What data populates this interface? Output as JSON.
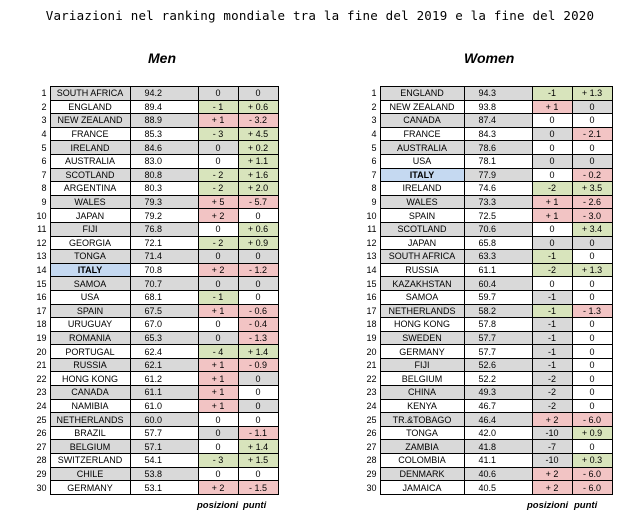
{
  "title": "Variazioni nel ranking mondiale tra la fine del 2019 e la fine del 2020",
  "men": {
    "heading": "Men",
    "rows": [
      {
        "pos": "1",
        "name": "SOUTH AFRICA",
        "score": "94.2",
        "dpos": "0",
        "dpts": "0",
        "dpos_color": "grey",
        "dpts_color": "grey"
      },
      {
        "pos": "2",
        "name": "ENGLAND",
        "score": "89.4",
        "dpos": "- 1",
        "dpts": "+ 0.6",
        "dpos_color": "green",
        "dpts_color": "green"
      },
      {
        "pos": "3",
        "name": "NEW ZEALAND",
        "score": "88.9",
        "dpos": "+ 1",
        "dpts": "- 3.2",
        "dpos_color": "red",
        "dpts_color": "red"
      },
      {
        "pos": "4",
        "name": "FRANCE",
        "score": "85.3",
        "dpos": "- 3",
        "dpts": "+ 4.5",
        "dpos_color": "green",
        "dpts_color": "green"
      },
      {
        "pos": "5",
        "name": "IRELAND",
        "score": "84.6",
        "dpos": "0",
        "dpts": "+ 0.2",
        "dpos_color": "grey",
        "dpts_color": "green"
      },
      {
        "pos": "6",
        "name": "AUSTRALIA",
        "score": "83.0",
        "dpos": "0",
        "dpts": "+ 1.1",
        "dpos_color": "white",
        "dpts_color": "green"
      },
      {
        "pos": "7",
        "name": "SCOTLAND",
        "score": "80.8",
        "dpos": "- 2",
        "dpts": "+ 1.6",
        "dpos_color": "green",
        "dpts_color": "green"
      },
      {
        "pos": "8",
        "name": "ARGENTINA",
        "score": "80.3",
        "dpos": "- 2",
        "dpts": "+ 2.0",
        "dpos_color": "green",
        "dpts_color": "green"
      },
      {
        "pos": "9",
        "name": "WALES",
        "score": "79.3",
        "dpos": "+ 5",
        "dpts": "- 5.7",
        "dpos_color": "red",
        "dpts_color": "red"
      },
      {
        "pos": "10",
        "name": "JAPAN",
        "score": "79.2",
        "dpos": "+ 2",
        "dpts": "0",
        "dpos_color": "red",
        "dpts_color": "white"
      },
      {
        "pos": "11",
        "name": "FIJI",
        "score": "76.8",
        "dpos": "0",
        "dpts": "+ 0.6",
        "dpos_color": "white",
        "dpts_color": "green"
      },
      {
        "pos": "12",
        "name": "GEORGIA",
        "score": "72.1",
        "dpos": "- 2",
        "dpts": "+ 0.9",
        "dpos_color": "green",
        "dpts_color": "green"
      },
      {
        "pos": "13",
        "name": "TONGA",
        "score": "71.4",
        "dpos": "0",
        "dpts": "0",
        "dpos_color": "grey",
        "dpts_color": "grey"
      },
      {
        "pos": "14",
        "name": "ITALY",
        "score": "70.8",
        "dpos": "+ 2",
        "dpts": "- 1.2",
        "dpos_color": "red",
        "dpts_color": "red",
        "highlight": true
      },
      {
        "pos": "15",
        "name": "SAMOA",
        "score": "70.7",
        "dpos": "0",
        "dpts": "0",
        "dpos_color": "grey",
        "dpts_color": "grey"
      },
      {
        "pos": "16",
        "name": "USA",
        "score": "68.1",
        "dpos": "- 1",
        "dpts": "0",
        "dpos_color": "green",
        "dpts_color": "white"
      },
      {
        "pos": "17",
        "name": "SPAIN",
        "score": "67.5",
        "dpos": "+ 1",
        "dpts": "- 0.6",
        "dpos_color": "red",
        "dpts_color": "red"
      },
      {
        "pos": "18",
        "name": "URUGUAY",
        "score": "67.0",
        "dpos": "0",
        "dpts": "- 0.4",
        "dpos_color": "white",
        "dpts_color": "red"
      },
      {
        "pos": "19",
        "name": "ROMANIA",
        "score": "65.3",
        "dpos": "0",
        "dpts": "- 1.3",
        "dpos_color": "grey",
        "dpts_color": "red"
      },
      {
        "pos": "20",
        "name": "PORTUGAL",
        "score": "62.4",
        "dpos": "- 4",
        "dpts": "+ 1.4",
        "dpos_color": "green",
        "dpts_color": "green"
      },
      {
        "pos": "21",
        "name": "RUSSIA",
        "score": "62.1",
        "dpos": "+ 1",
        "dpts": "- 0.9",
        "dpos_color": "red",
        "dpts_color": "red"
      },
      {
        "pos": "22",
        "name": "HONG KONG",
        "score": "61.2",
        "dpos": "+ 1",
        "dpts": "0",
        "dpos_color": "red",
        "dpts_color": "grey"
      },
      {
        "pos": "23",
        "name": "CANADA",
        "score": "61.1",
        "dpos": "+ 1",
        "dpts": "0",
        "dpos_color": "red",
        "dpts_color": "white"
      },
      {
        "pos": "24",
        "name": "NAMIBIA",
        "score": "61.0",
        "dpos": "+ 1",
        "dpts": "0",
        "dpos_color": "red",
        "dpts_color": "grey"
      },
      {
        "pos": "25",
        "name": "NETHERLANDS",
        "score": "60.0",
        "dpos": "0",
        "dpts": "0",
        "dpos_color": "white",
        "dpts_color": "white"
      },
      {
        "pos": "26",
        "name": "BRAZIL",
        "score": "57.7",
        "dpos": "0",
        "dpts": "- 1.1",
        "dpos_color": "grey",
        "dpts_color": "red"
      },
      {
        "pos": "27",
        "name": "BELGIUM",
        "score": "57.1",
        "dpos": "0",
        "dpts": "+ 1.4",
        "dpos_color": "white",
        "dpts_color": "green"
      },
      {
        "pos": "28",
        "name": "SWITZERLAND",
        "score": "54.1",
        "dpos": "- 3",
        "dpts": "+ 1.5",
        "dpos_color": "green",
        "dpts_color": "green"
      },
      {
        "pos": "29",
        "name": "CHILE",
        "score": "53.8",
        "dpos": "0",
        "dpts": "0",
        "dpos_color": "white",
        "dpts_color": "white"
      },
      {
        "pos": "30",
        "name": "GERMANY",
        "score": "53.1",
        "dpos": "+ 2",
        "dpts": "- 1.5",
        "dpos_color": "red",
        "dpts_color": "red"
      }
    ],
    "footer_positions": "posizioni",
    "footer_points": "punti"
  },
  "women": {
    "heading": "Women",
    "rows": [
      {
        "pos": "1",
        "name": "ENGLAND",
        "score": "94.3",
        "dpos": "-1",
        "dpts": "+ 1.3",
        "dpos_color": "green",
        "dpts_color": "green"
      },
      {
        "pos": "2",
        "name": "NEW ZEALAND",
        "score": "93.8",
        "dpos": "+ 1",
        "dpts": "0",
        "dpos_color": "red",
        "dpts_color": "grey"
      },
      {
        "pos": "3",
        "name": "CANADA",
        "score": "87.4",
        "dpos": "0",
        "dpts": "0",
        "dpos_color": "white",
        "dpts_color": "white"
      },
      {
        "pos": "4",
        "name": "FRANCE",
        "score": "84.3",
        "dpos": "0",
        "dpts": "- 2.1",
        "dpos_color": "grey",
        "dpts_color": "red"
      },
      {
        "pos": "5",
        "name": "AUSTRALIA",
        "score": "78.6",
        "dpos": "0",
        "dpts": "0",
        "dpos_color": "white",
        "dpts_color": "white"
      },
      {
        "pos": "6",
        "name": "USA",
        "score": "78.1",
        "dpos": "0",
        "dpts": "0",
        "dpos_color": "grey",
        "dpts_color": "grey"
      },
      {
        "pos": "7",
        "name": "ITALY",
        "score": "77.9",
        "dpos": "0",
        "dpts": "- 0.2",
        "dpos_color": "white",
        "dpts_color": "red",
        "highlight": true
      },
      {
        "pos": "8",
        "name": "IRELAND",
        "score": "74.6",
        "dpos": "-2",
        "dpts": "+ 3.5",
        "dpos_color": "green",
        "dpts_color": "green"
      },
      {
        "pos": "9",
        "name": "WALES",
        "score": "73.3",
        "dpos": "+ 1",
        "dpts": "- 2.6",
        "dpos_color": "red",
        "dpts_color": "red"
      },
      {
        "pos": "10",
        "name": "SPAIN",
        "score": "72.5",
        "dpos": "+ 1",
        "dpts": "- 3.0",
        "dpos_color": "red",
        "dpts_color": "red"
      },
      {
        "pos": "11",
        "name": "SCOTLAND",
        "score": "70.6",
        "dpos": "0",
        "dpts": "+ 3.4",
        "dpos_color": "white",
        "dpts_color": "green"
      },
      {
        "pos": "12",
        "name": "JAPAN",
        "score": "65.8",
        "dpos": "0",
        "dpts": "0",
        "dpos_color": "grey",
        "dpts_color": "grey"
      },
      {
        "pos": "13",
        "name": "SOUTH AFRICA",
        "score": "63.3",
        "dpos": "-1",
        "dpts": "0",
        "dpos_color": "green",
        "dpts_color": "white"
      },
      {
        "pos": "14",
        "name": "RUSSIA",
        "score": "61.1",
        "dpos": "-2",
        "dpts": "+ 1.3",
        "dpos_color": "green",
        "dpts_color": "green"
      },
      {
        "pos": "15",
        "name": "KAZAKHSTAN",
        "score": "60.4",
        "dpos": "0",
        "dpts": "0",
        "dpos_color": "white",
        "dpts_color": "white"
      },
      {
        "pos": "16",
        "name": "SAMOA",
        "score": "59.7",
        "dpos": "-1",
        "dpts": "0",
        "dpos_color": "grey",
        "dpts_color": "white"
      },
      {
        "pos": "17",
        "name": "NETHERLANDS",
        "score": "58.2",
        "dpos": "-1",
        "dpts": "- 1.3",
        "dpos_color": "green",
        "dpts_color": "red"
      },
      {
        "pos": "18",
        "name": "HONG KONG",
        "score": "57.8",
        "dpos": "-1",
        "dpts": "0",
        "dpos_color": "grey",
        "dpts_color": "white"
      },
      {
        "pos": "19",
        "name": "SWEDEN",
        "score": "57.7",
        "dpos": "-1",
        "dpts": "0",
        "dpos_color": "grey",
        "dpts_color": "white"
      },
      {
        "pos": "20",
        "name": "GERMANY",
        "score": "57.7",
        "dpos": "-1",
        "dpts": "0",
        "dpos_color": "grey",
        "dpts_color": "white"
      },
      {
        "pos": "21",
        "name": "FIJI",
        "score": "52.6",
        "dpos": "-1",
        "dpts": "0",
        "dpos_color": "grey",
        "dpts_color": "white"
      },
      {
        "pos": "22",
        "name": "BELGIUM",
        "score": "52.2",
        "dpos": "-2",
        "dpts": "0",
        "dpos_color": "grey",
        "dpts_color": "white"
      },
      {
        "pos": "23",
        "name": "CHINA",
        "score": "49.3",
        "dpos": "-2",
        "dpts": "0",
        "dpos_color": "grey",
        "dpts_color": "white"
      },
      {
        "pos": "24",
        "name": "KENYA",
        "score": "46.7",
        "dpos": "-2",
        "dpts": "0",
        "dpos_color": "grey",
        "dpts_color": "white"
      },
      {
        "pos": "25",
        "name": "TR.&TOBAGO",
        "score": "46.4",
        "dpos": "+ 2",
        "dpts": "- 6.0",
        "dpos_color": "red",
        "dpts_color": "red"
      },
      {
        "pos": "26",
        "name": "TONGA",
        "score": "42.0",
        "dpos": "-10",
        "dpts": "+ 0.9",
        "dpos_color": "grey",
        "dpts_color": "green"
      },
      {
        "pos": "27",
        "name": "ZAMBIA",
        "score": "41.8",
        "dpos": "-7",
        "dpts": "0",
        "dpos_color": "grey",
        "dpts_color": "white"
      },
      {
        "pos": "28",
        "name": "COLOMBIA",
        "score": "41.1",
        "dpos": "-10",
        "dpts": "+ 0.3",
        "dpos_color": "grey",
        "dpts_color": "green"
      },
      {
        "pos": "29",
        "name": "DENMARK",
        "score": "40.6",
        "dpos": "+ 2",
        "dpts": "- 6.0",
        "dpos_color": "red",
        "dpts_color": "red"
      },
      {
        "pos": "30",
        "name": "JAMAICA",
        "score": "40.5",
        "dpos": "+ 2",
        "dpts": "- 6.0",
        "dpos_color": "red",
        "dpts_color": "red"
      }
    ],
    "footer_positions": "posizioni",
    "footer_points": "punti"
  }
}
